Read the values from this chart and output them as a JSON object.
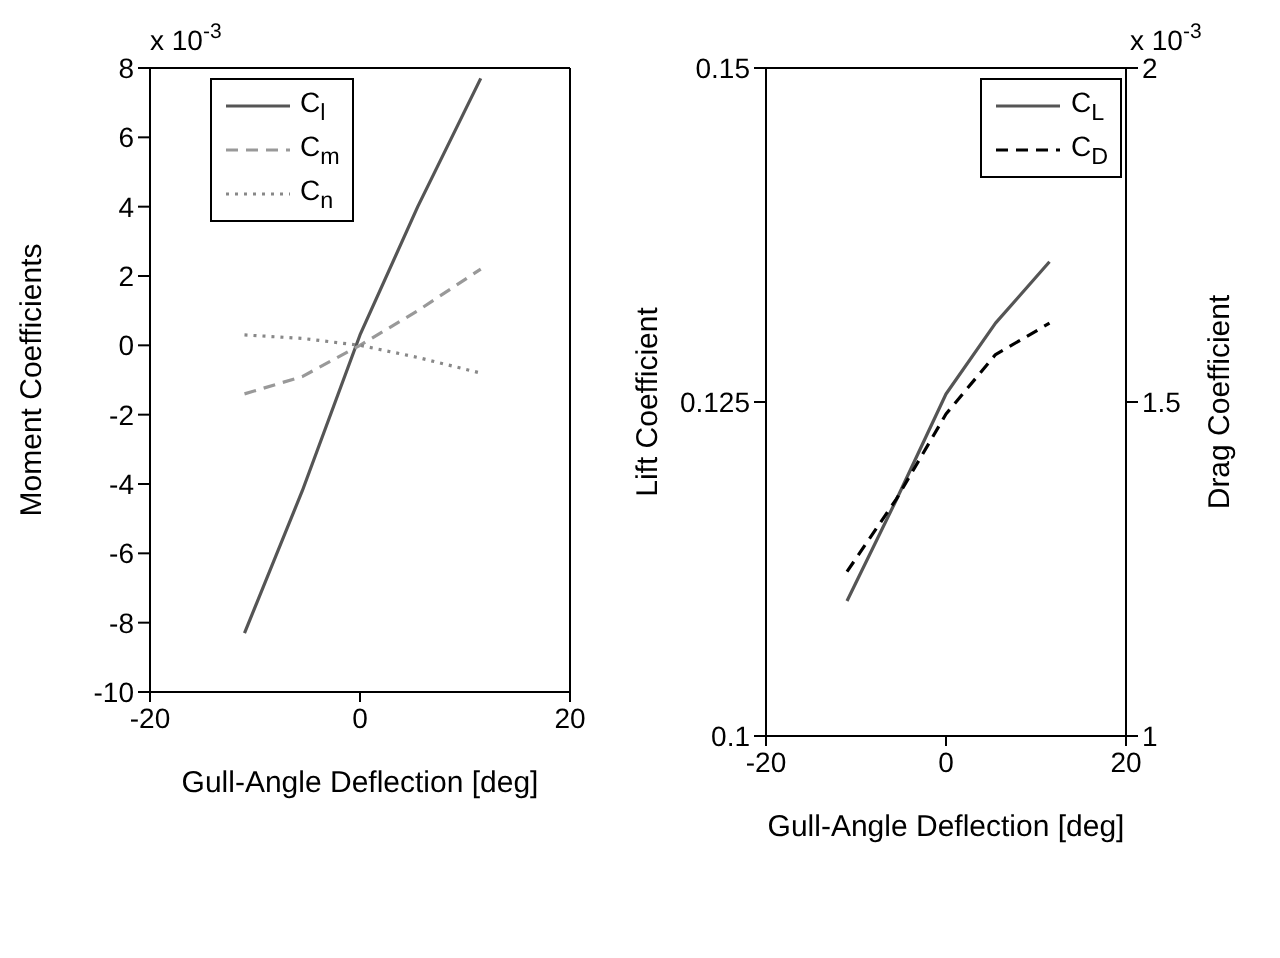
{
  "chart_data": [
    {
      "type": "line",
      "xlabel": "Gull-Angle Deflection [deg]",
      "ylabel": "Moment Coefficients",
      "annotations": [
        "x 10$^{-3}$"
      ],
      "x": [
        -11,
        -5.5,
        0,
        5.5,
        11.5
      ],
      "xlim": [
        -20,
        20
      ],
      "xticks": [
        -20,
        0,
        20
      ],
      "ylim": [
        -10,
        8
      ],
      "yticks": [
        -10,
        -8,
        -6,
        -4,
        -2,
        0,
        2,
        4,
        6,
        8
      ],
      "grid": false,
      "legend": "top left",
      "marker": "none",
      "series": [
        {
          "name": "C$_{l}$",
          "color": "#555555",
          "line_style": "solid",
          "values": [
            -8.3,
            -4.2,
            0.3,
            4.0,
            7.7
          ]
        },
        {
          "name": "C$_{m}$",
          "color": "#999999",
          "line_style": "dashed",
          "values": [
            -1.4,
            -0.9,
            0,
            1.0,
            2.2
          ]
        },
        {
          "name": "C$_{n}$",
          "color": "#888888",
          "line_style": "dotted",
          "values": [
            0.3,
            0.2,
            0,
            -0.35,
            -0.8
          ]
        }
      ]
    },
    {
      "type": "line",
      "xlabel": "Gull-Angle Deflection [deg]",
      "ylabel": "Lift Coefficient",
      "y2label": "Drag Coefficient",
      "annotations": [
        "x 10$^{-3}$"
      ],
      "x": [
        -11,
        -5.5,
        0,
        5.5,
        11.5
      ],
      "xlim": [
        -20,
        20
      ],
      "xticks": [
        -20,
        0,
        20
      ],
      "ylim": [
        0.1,
        0.15
      ],
      "yticks": [
        0.1,
        0.125,
        0.15
      ],
      "y2lim": [
        1,
        2
      ],
      "y2ticks": [
        1,
        1.5,
        2
      ],
      "grid": false,
      "legend": "top right",
      "marker": "none",
      "series": [
        {
          "name": "C$_{L}$",
          "color": "#555555",
          "line_style": "solid",
          "values": [
            0.1101,
            0.1177,
            0.1256,
            0.1309,
            0.1355
          ]
        },
        {
          "name": "C$_{D}$",
          "color": "#000000",
          "line_style": "dashed",
          "axis": "y2",
          "values": [
            1.246,
            1.355,
            1.482,
            1.571,
            1.618
          ]
        }
      ]
    }
  ]
}
